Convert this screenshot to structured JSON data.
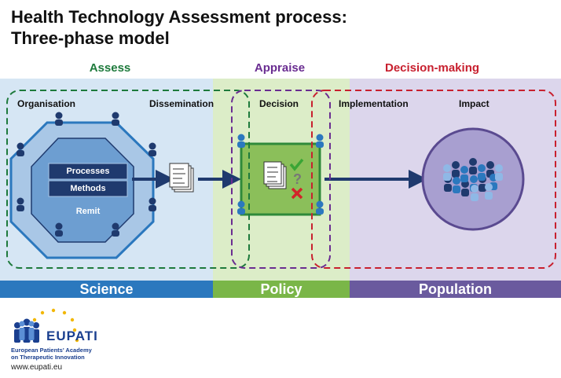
{
  "title": {
    "line1": "Health Technology Assessment process:",
    "line2": "Three-phase model"
  },
  "phases": {
    "assess": "Assess",
    "appraise": "Appraise",
    "decision_making": "Decision-making"
  },
  "steps": {
    "organisation": "Organisation",
    "dissemination": "Dissemination",
    "decision": "Decision",
    "implementation": "Implementation",
    "impact": "Impact"
  },
  "org_box": {
    "processes": "Processes",
    "methods": "Methods",
    "remit": "Remit"
  },
  "bars": {
    "science": "Science",
    "policy": "Policy",
    "population": "Population"
  },
  "logo": {
    "name": "EUPATI",
    "tagline1": "European Patients' Academy",
    "tagline2": "on Therapeutic Innovation",
    "url": "www.eupati.eu"
  },
  "icons": [
    "person-icon",
    "document-icon",
    "checkmark-icon",
    "question-mark-icon",
    "cross-icon",
    "arrow-icon",
    "star-icon",
    "crowd-icon"
  ],
  "colors": {
    "assess": "#1e7a3c",
    "appraise": "#6a2d91",
    "decision_making": "#c8202f",
    "science_bg": "#d6e6f4",
    "policy_bg": "#dcedc8",
    "population_bg": "#dcd6ec",
    "science_bar": "#2b78be",
    "policy_bar": "#7ab648",
    "population_bar": "#6a5a9e",
    "navy": "#1f3a6e"
  }
}
